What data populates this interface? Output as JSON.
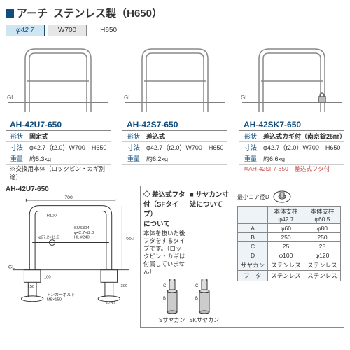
{
  "colors": {
    "navy": "#0f4e7d",
    "lightblue": "#cfe5f2",
    "gray": "#e6e6e6",
    "line": "#555555",
    "highlight": "#c0504d"
  },
  "header": {
    "square_color": "#0f4e7d",
    "title_prefix": "アーチ",
    "title_main": "ステンレス製（H650）"
  },
  "spec_cells": [
    {
      "label": "φ42.7",
      "bg": "#cfe5f2",
      "border": "#0f4e7d",
      "color": "#0f4e7d",
      "italic": true
    },
    {
      "label": "W700",
      "bg": "#e6e6e6",
      "border": "#888888",
      "color": "#333",
      "italic": false
    },
    {
      "label": "H650",
      "bg": "#ffffff",
      "border": "#888888",
      "color": "#333",
      "italic": false
    }
  ],
  "products": [
    {
      "model": "AH-42U7-650",
      "shape": "固定式",
      "dim": "φ42.7（t2.0）W700　H650",
      "weight": "約5.3kg",
      "note": "※交換用本体（ロックピン・カギ別途）",
      "has_lock": false
    },
    {
      "model": "AH-42S7-650",
      "shape": "差込式",
      "dim": "φ42.7（t2.0）W700　H650",
      "weight": "約6.2kg",
      "note": "",
      "has_lock": false
    },
    {
      "model": "AH-42SK7-650",
      "shape": "差込式カギ付（南京錠25㎜）",
      "dim": "φ42.7（t2.0）W700　H650",
      "weight": "約6.6kg",
      "note": "※AH-42SF7-650　差込式フタ付",
      "has_lock": true
    }
  ],
  "row_labels": {
    "shape": "形状",
    "dim": "寸法",
    "weight": "重量"
  },
  "drawing": {
    "title": "AH-42U7-650",
    "w": "700",
    "h": "650",
    "r": "R100",
    "pipe": "φ27.2×11.5",
    "mat": "SUS304\nφ42.7×t2.0\nHL #240",
    "anchor": "アンカーボルト\nM8×150",
    "gl": "GL",
    "base_h": "100",
    "base_w": "150",
    "core": "φ250",
    "depth": "300"
  },
  "infobox": {
    "head1": "◇ 差込式フタ付（SFタイプ）\nについて",
    "text1": "本体を抜いた後フタをするタイプです。（ロックピン・カギは付属していません）",
    "head2": "■ サヤカン寸法について",
    "core_label": "最小コア径D",
    "sleeve_labels": [
      "Sサヤカン",
      "SKサヤカン"
    ],
    "table": {
      "head": [
        "",
        "本体支柱\nφ42.7",
        "本体支柱\nφ60.5"
      ],
      "rows": [
        [
          "A",
          "φ60",
          "φ80"
        ],
        [
          "B",
          "250",
          "250"
        ],
        [
          "C",
          "25",
          "25"
        ],
        [
          "D",
          "φ100",
          "φ120"
        ],
        [
          "サヤカン",
          "ステンレス",
          "ステンレス"
        ],
        [
          "フ　タ",
          "ステンレス",
          "ステンレス"
        ]
      ]
    }
  }
}
